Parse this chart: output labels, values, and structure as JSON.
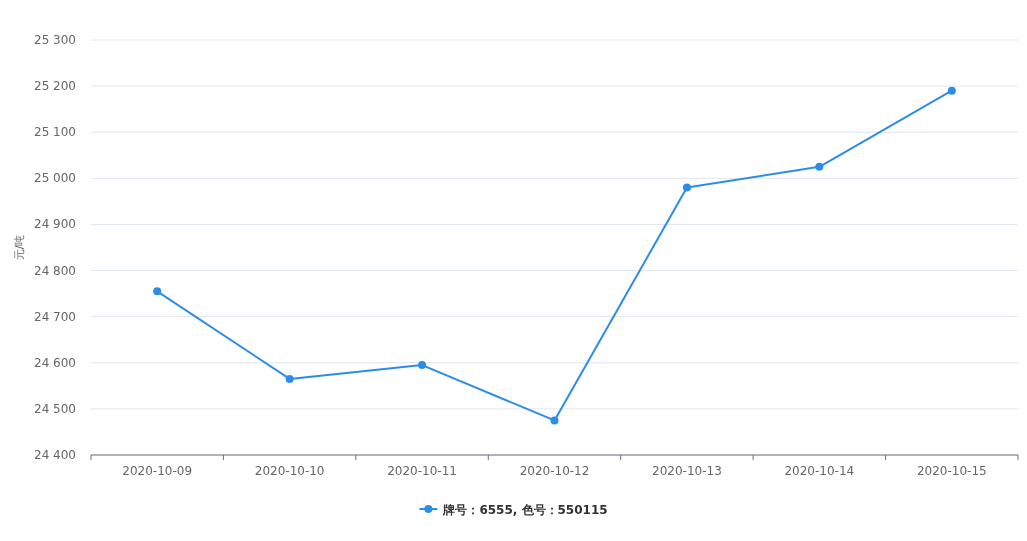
{
  "chart_data": {
    "type": "line",
    "ylabel": "元/吨",
    "categories": [
      "2020-10-09",
      "2020-10-10",
      "2020-10-11",
      "2020-10-12",
      "2020-10-13",
      "2020-10-14",
      "2020-10-15"
    ],
    "series": [
      {
        "name": "牌号：6555, 色号：550115",
        "color": "#2b8de8",
        "values": [
          24755,
          24565,
          24595,
          24475,
          24980,
          25025,
          25190
        ]
      }
    ],
    "ylim": [
      24400,
      25300
    ],
    "yticks": [
      {
        "value": 24400,
        "label": "24 400"
      },
      {
        "value": 24500,
        "label": "24 500"
      },
      {
        "value": 24600,
        "label": "24 600"
      },
      {
        "value": 24700,
        "label": "24 700"
      },
      {
        "value": 24800,
        "label": "24 800"
      },
      {
        "value": 24900,
        "label": "24 900"
      },
      {
        "value": 25000,
        "label": "25 000"
      },
      {
        "value": 25100,
        "label": "25 100"
      },
      {
        "value": 25200,
        "label": "25 200"
      },
      {
        "value": 25300,
        "label": "25 300"
      }
    ],
    "grid": "y",
    "legend": "bottom",
    "marker": "circle",
    "line_style": "solid"
  }
}
